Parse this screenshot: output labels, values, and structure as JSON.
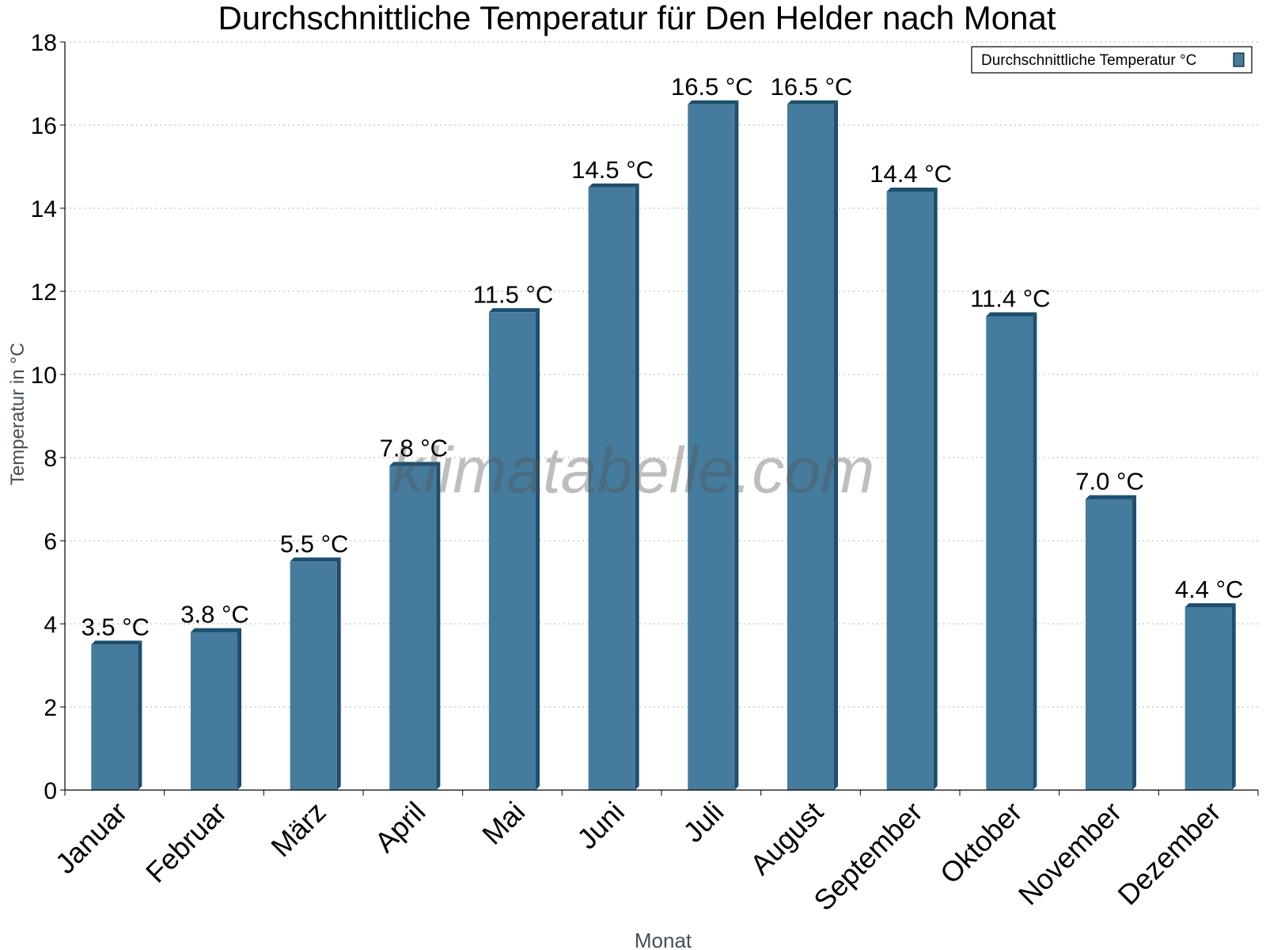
{
  "chart_data": {
    "type": "bar",
    "title": "Durchschnittliche Temperatur für Den Helder nach Monat",
    "xlabel": "Monat",
    "ylabel": "Temperatur in °C",
    "categories": [
      "Januar",
      "Februar",
      "März",
      "April",
      "Mai",
      "Juni",
      "Juli",
      "August",
      "September",
      "Oktober",
      "November",
      "Dezember"
    ],
    "series": [
      {
        "name": "Durchschnittliche Temperatur °C",
        "values": [
          3.5,
          3.8,
          5.5,
          7.8,
          11.5,
          14.5,
          16.5,
          16.5,
          14.4,
          11.4,
          7.0,
          4.4
        ],
        "labels": [
          "3.5 °C",
          "3.8 °C",
          "5.5 °C",
          "7.8 °C",
          "11.5 °C",
          "14.5 °C",
          "16.5 °C",
          "16.5 °C",
          "14.4 °C",
          "11.4 °C",
          "7.0 °C",
          "4.4 °C"
        ]
      }
    ],
    "ylim": [
      0,
      18
    ],
    "yticks": [
      0,
      2,
      4,
      6,
      8,
      10,
      12,
      14,
      16,
      18
    ],
    "grid": true,
    "legend_position": "top-right",
    "watermark": "klimatabelle.com",
    "colors": {
      "bar_front": "#457b9d",
      "bar_side": "#1d4e6e",
      "bar_top": "#1d4e6e",
      "grid": "#b0b0b0",
      "axis": "#000000",
      "axis_title": "#444e5a",
      "watermark": "#555555"
    }
  }
}
